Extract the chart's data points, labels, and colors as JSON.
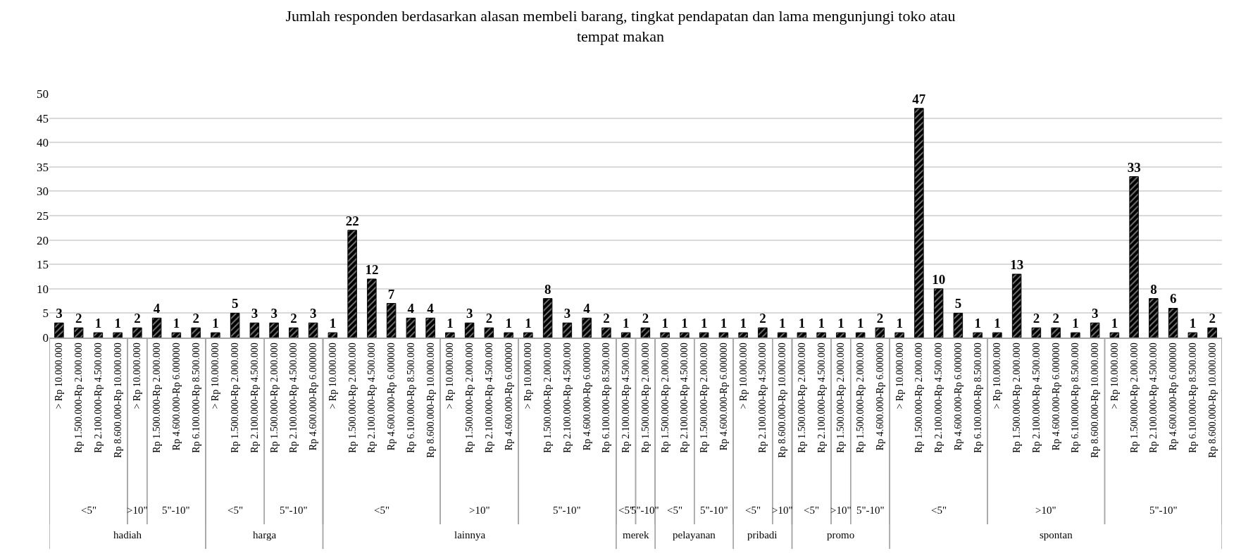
{
  "chart_data": {
    "type": "bar",
    "title": "Jumlah responden berdasarkan alasan membeli barang, tingkat pendapatan dan lama mengunjungi toko atau\ntempat makan",
    "categories": [
      "> Rp 10.000.000",
      "Rp 1.500.000-Rp 2.000.000",
      "Rp 2.100.000-Rp 4.500.000",
      "Rp 8.600.000-Rp 10.000.000",
      "> Rp 10.000.000",
      "Rp 1.500.000-Rp 2.000.000",
      "Rp 4.600.000-Rp 6.000000",
      "Rp 6.100.000-Rp 8.500.000",
      "> Rp 10.000.000",
      "Rp 1.500.000-Rp 2.000.000",
      "Rp 2.100.000-Rp 4.500.000",
      "Rp 1.500.000-Rp 2.000.000",
      "Rp 2.100.000-Rp 4.500.000",
      "Rp 4.600.000-Rp 6.000000",
      "> Rp 10.000.000",
      "Rp 1.500.000-Rp 2.000.000",
      "Rp 2.100.000-Rp 4.500.000",
      "Rp 4.600.000-Rp 6.000000",
      "Rp 6.100.000-Rp 8.500.000",
      "Rp 8.600.000-Rp 10.000.000",
      "> Rp 10.000.000",
      "Rp 1.500.000-Rp 2.000.000",
      "Rp 2.100.000-Rp 4.500.000",
      "Rp 4.600.000-Rp 6.000000",
      "> Rp 10.000.000",
      "Rp 1.500.000-Rp 2.000.000",
      "Rp 2.100.000-Rp 4.500.000",
      "Rp 4.600.000-Rp 6.000000",
      "Rp 6.100.000-Rp 8.500.000",
      "Rp 2.100.000-Rp 4.500.000",
      "Rp 1.500.000-Rp 2.000.000",
      "Rp 1.500.000-Rp 2.000.000",
      "Rp 2.100.000-Rp 4.500.000",
      "Rp 1.500.000-Rp 2.000.000",
      "Rp 4.600.000-Rp 6.000000",
      "> Rp 10.000.000",
      "Rp 2.100.000-Rp 4.500.000",
      "Rp 8.600.000-Rp 10.000.000",
      "Rp 1.500.000-Rp 2.000.000",
      "Rp 2.100.000-Rp 4.500.000",
      "Rp 1.500.000-Rp 2.000.000",
      "Rp 1.500.000-Rp 2.000.000",
      "Rp 4.600.000-Rp 6.000000",
      "> Rp 10.000.000",
      "Rp 1.500.000-Rp 2.000.000",
      "Rp 2.100.000-Rp 4.500.000",
      "Rp 4.600.000-Rp 6.000000",
      "Rp 6.100.000-Rp 8.500.000",
      "> Rp 10.000.000",
      "Rp 1.500.000-Rp 2.000.000",
      "Rp 2.100.000-Rp 4.500.000",
      "Rp 4.600.000-Rp 6.000000",
      "Rp 6.100.000-Rp 8.500.000",
      "Rp 8.600.000-Rp 10.000.000",
      "> Rp 10.000.000",
      "Rp 1.500.000-Rp 2.000.000",
      "Rp 2.100.000-Rp 4.500.000",
      "Rp 4.600.000-Rp 6.000000",
      "Rp 6.100.000-Rp 8.500.000",
      "Rp 8.600.000-Rp 10.000.000"
    ],
    "annotations": [
      "<5\"",
      ">10\"",
      "5\"-10\"",
      "<5\"",
      "5\"-10\"",
      "<5\"",
      ">10\"",
      "5\"-10\"",
      "<5\"",
      "5\"-10\"",
      "<5\"",
      "5\"-10\"",
      "<5\"",
      ">10\"",
      "<5\"",
      ">10\"",
      "5\"-10\"",
      "<5\"",
      ">10\"",
      "5\"-10\"",
      "hadiah",
      "harga",
      "lainnya",
      "merek",
      "pelayanan",
      "pribadi",
      "promo",
      "spontan"
    ],
    "values": [
      3,
      2,
      1,
      1,
      2,
      4,
      1,
      2,
      1,
      5,
      3,
      3,
      2,
      3,
      1,
      22,
      12,
      7,
      4,
      4,
      1,
      3,
      2,
      1,
      1,
      8,
      3,
      4,
      2,
      1,
      2,
      1,
      1,
      1,
      1,
      1,
      2,
      1,
      1,
      1,
      1,
      1,
      2,
      1,
      47,
      10,
      5,
      1,
      1,
      13,
      2,
      2,
      1,
      3,
      1,
      33,
      8,
      6,
      1,
      2
    ],
    "color": "#000000",
    "ylim": [
      0,
      50
    ],
    "yticks": [
      0,
      5,
      10,
      15,
      20,
      25,
      30,
      35,
      40,
      45,
      50
    ],
    "grid": "y",
    "data_labels": true
  }
}
